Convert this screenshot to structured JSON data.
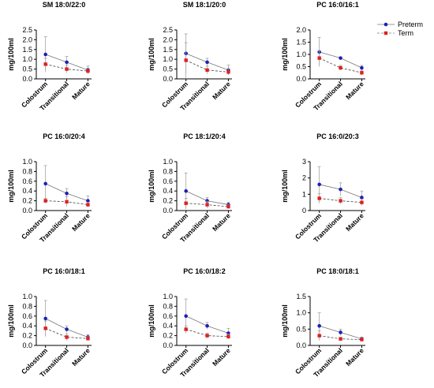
{
  "legend": {
    "entries": [
      {
        "label": "Preterm",
        "color": "#1f1fb4"
      },
      {
        "label": "Term",
        "color": "#e02020"
      }
    ],
    "placement": "top-right"
  },
  "chart_data": [
    {
      "type": "line",
      "title": "SM 18:0/22:0",
      "ylabel": "mg/100ml",
      "categories": [
        "Colostrum",
        "Transitional",
        "Mature"
      ],
      "ylim": [
        0,
        2.5
      ],
      "yticks": [
        "0.0",
        "0.5",
        "1.0",
        "1.5",
        "2.0",
        "2.5"
      ],
      "series": [
        {
          "name": "Preterm",
          "values": [
            1.25,
            0.85,
            0.45
          ],
          "err": [
            0.9,
            0.3,
            0.2
          ]
        },
        {
          "name": "Term",
          "values": [
            0.75,
            0.5,
            0.4
          ],
          "err": [
            0.3,
            0.2,
            0.15
          ]
        }
      ]
    },
    {
      "type": "line",
      "title": "SM 18:1/20:0",
      "ylabel": "mg/100ml",
      "categories": [
        "Colostrum",
        "Transitional",
        "Mature"
      ],
      "ylim": [
        0,
        2.5
      ],
      "yticks": [
        "0.0",
        "0.5",
        "1.0",
        "1.5",
        "2.0",
        "2.5"
      ],
      "series": [
        {
          "name": "Preterm",
          "values": [
            1.3,
            0.85,
            0.45
          ],
          "err": [
            1.0,
            0.2,
            0.25
          ]
        },
        {
          "name": "Term",
          "values": [
            0.95,
            0.45,
            0.35
          ],
          "err": [
            0.9,
            0.2,
            0.15
          ]
        }
      ]
    },
    {
      "type": "line",
      "title": "PC 16:0/16:1",
      "ylabel": "mg/100ml",
      "categories": [
        "Colostrum",
        "Transitional",
        "Mature"
      ],
      "ylim": [
        0,
        2.0
      ],
      "yticks": [
        "0.0",
        "0.5",
        "1.0",
        "1.5",
        "2.0"
      ],
      "series": [
        {
          "name": "Preterm",
          "values": [
            1.1,
            0.85,
            0.45
          ],
          "err": [
            0.6,
            0.05,
            0.1
          ]
        },
        {
          "name": "Term",
          "values": [
            0.85,
            0.45,
            0.25
          ],
          "err": [
            0.3,
            0.1,
            0.1
          ]
        }
      ]
    },
    {
      "type": "line",
      "title": "PC 16:0/20:4",
      "ylabel": "mg/100ml",
      "categories": [
        "Colostrum",
        "Transitional",
        "Mature"
      ],
      "ylim": [
        0,
        1.0
      ],
      "yticks": [
        "0.0",
        "0.2",
        "0.4",
        "0.6",
        "0.8",
        "1.0"
      ],
      "series": [
        {
          "name": "Preterm",
          "values": [
            0.55,
            0.35,
            0.2
          ],
          "err": [
            0.37,
            0.1,
            0.1
          ]
        },
        {
          "name": "Term",
          "values": [
            0.2,
            0.18,
            0.12
          ],
          "err": [
            0.05,
            0.1,
            0.05
          ]
        }
      ]
    },
    {
      "type": "line",
      "title": "PC 18:1/20:4",
      "ylabel": "mg/100ml",
      "categories": [
        "Colostrum",
        "Transitional",
        "Mature"
      ],
      "ylim": [
        0,
        1.0
      ],
      "yticks": [
        "0.0",
        "0.2",
        "0.4",
        "0.6",
        "0.8",
        "1.0"
      ],
      "series": [
        {
          "name": "Preterm",
          "values": [
            0.4,
            0.2,
            0.12
          ],
          "err": [
            0.37,
            0.07,
            0.05
          ]
        },
        {
          "name": "Term",
          "values": [
            0.15,
            0.12,
            0.08
          ],
          "err": [
            0.1,
            0.07,
            0.04
          ]
        }
      ]
    },
    {
      "type": "line",
      "title": "PC 16:0/20:3",
      "ylabel": "mg/100ml",
      "categories": [
        "Colostrum",
        "Transitional",
        "Mature"
      ],
      "ylim": [
        0,
        3
      ],
      "yticks": [
        "0",
        "1",
        "2",
        "3"
      ],
      "series": [
        {
          "name": "Preterm",
          "values": [
            1.6,
            1.3,
            0.8
          ],
          "err": [
            1.1,
            0.4,
            0.4
          ]
        },
        {
          "name": "Term",
          "values": [
            0.75,
            0.6,
            0.5
          ],
          "err": [
            0.3,
            0.2,
            0.2
          ]
        }
      ]
    },
    {
      "type": "line",
      "title": "PC 16:0/18:1",
      "ylabel": "mg/100ml",
      "categories": [
        "Colostrum",
        "Transitional",
        "Mature"
      ],
      "ylim": [
        0,
        1.0
      ],
      "yticks": [
        "0.0",
        "0.2",
        "0.4",
        "0.6",
        "0.8",
        "1.0"
      ],
      "series": [
        {
          "name": "Preterm",
          "values": [
            0.55,
            0.33,
            0.17
          ],
          "err": [
            0.37,
            0.07,
            0.05
          ]
        },
        {
          "name": "Term",
          "values": [
            0.35,
            0.17,
            0.14
          ],
          "err": [
            0.15,
            0.07,
            0.04
          ]
        }
      ]
    },
    {
      "type": "line",
      "title": "PC 16:0/18:2",
      "ylabel": "mg/100ml",
      "categories": [
        "Colostrum",
        "Transitional",
        "Mature"
      ],
      "ylim": [
        0,
        1.0
      ],
      "yticks": [
        "0.0",
        "0.2",
        "0.4",
        "0.6",
        "0.8",
        "1.0"
      ],
      "series": [
        {
          "name": "Preterm",
          "values": [
            0.6,
            0.4,
            0.25
          ],
          "err": [
            0.35,
            0.07,
            0.1
          ]
        },
        {
          "name": "Term",
          "values": [
            0.33,
            0.2,
            0.18
          ],
          "err": [
            0.07,
            0.05,
            0.05
          ]
        }
      ]
    },
    {
      "type": "line",
      "title": "PC 18:0/18:1",
      "ylabel": "mg/100ml",
      "categories": [
        "Colostrum",
        "Transitional",
        "Mature"
      ],
      "ylim": [
        0,
        1.5
      ],
      "yticks": [
        "0.0",
        "0.5",
        "1.0",
        "1.5"
      ],
      "series": [
        {
          "name": "Preterm",
          "values": [
            0.6,
            0.4,
            0.2
          ],
          "err": [
            0.4,
            0.1,
            0.05
          ]
        },
        {
          "name": "Term",
          "values": [
            0.3,
            0.2,
            0.18
          ],
          "err": [
            0.15,
            0.05,
            0.05
          ]
        }
      ]
    }
  ]
}
